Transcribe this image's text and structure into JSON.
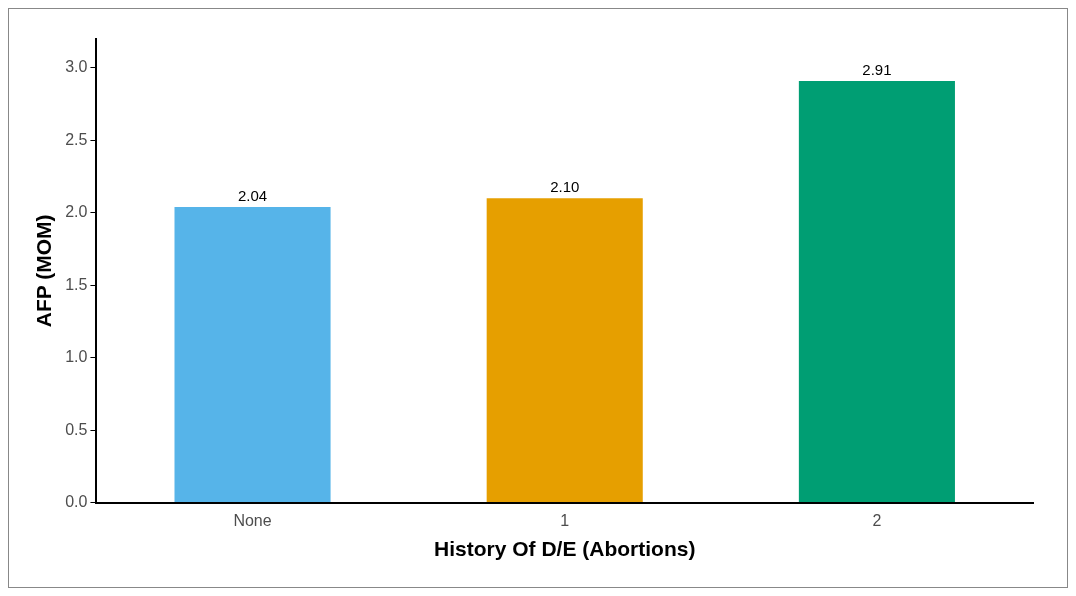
{
  "chart_data": {
    "type": "bar",
    "xlabel": "History Of D/E (Abortions)",
    "ylabel": "AFP (MOM)",
    "categories": [
      "None",
      "1",
      "2"
    ],
    "values": [
      2.04,
      2.1,
      2.91
    ],
    "colors": [
      "#56b4e9",
      "#e69f00",
      "#009e73"
    ],
    "value_labels": [
      "2.04",
      "2.10",
      "2.91"
    ],
    "ylim": [
      0,
      3.2
    ],
    "yticks": [
      {
        "value": 0,
        "label": "0.0"
      },
      {
        "value": 0.5,
        "label": "0.5"
      },
      {
        "value": 1,
        "label": "1.0"
      },
      {
        "value": 1.5,
        "label": "1.5"
      },
      {
        "value": 2,
        "label": "2.0"
      },
      {
        "value": 2.5,
        "label": "2.5"
      },
      {
        "value": 3,
        "label": "3.0"
      }
    ],
    "grid": false,
    "legend": false
  }
}
